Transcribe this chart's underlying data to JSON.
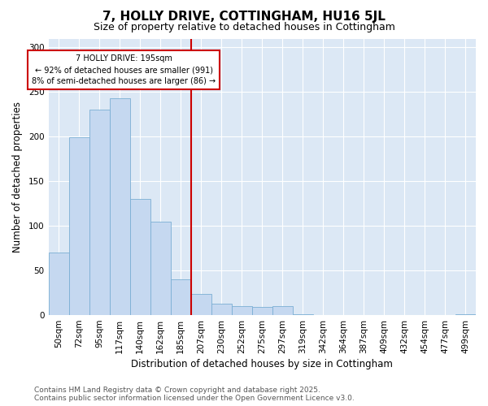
{
  "title": "7, HOLLY DRIVE, COTTINGHAM, HU16 5JL",
  "subtitle": "Size of property relative to detached houses in Cottingham",
  "xlabel": "Distribution of detached houses by size in Cottingham",
  "ylabel": "Number of detached properties",
  "bins": [
    "50sqm",
    "72sqm",
    "95sqm",
    "117sqm",
    "140sqm",
    "162sqm",
    "185sqm",
    "207sqm",
    "230sqm",
    "252sqm",
    "275sqm",
    "297sqm",
    "319sqm",
    "342sqm",
    "364sqm",
    "387sqm",
    "409sqm",
    "432sqm",
    "454sqm",
    "477sqm",
    "499sqm"
  ],
  "bar_heights": [
    70,
    199,
    230,
    243,
    130,
    105,
    40,
    24,
    13,
    10,
    9,
    10,
    1,
    0,
    0,
    0,
    0,
    0,
    0,
    0,
    1
  ],
  "bar_color": "#c5d8f0",
  "bar_edge_color": "#7bafd4",
  "vline_color": "#cc0000",
  "vline_position": 6.5,
  "annotation_text": "7 HOLLY DRIVE: 195sqm\n← 92% of detached houses are smaller (991)\n8% of semi-detached houses are larger (86) →",
  "annotation_box_color": "#ffffff",
  "annotation_box_edge_color": "#cc0000",
  "ylim": [
    0,
    310
  ],
  "yticks": [
    0,
    50,
    100,
    150,
    200,
    250,
    300
  ],
  "plot_bgcolor": "#dce8f5",
  "footer_text": "Contains HM Land Registry data © Crown copyright and database right 2025.\nContains public sector information licensed under the Open Government Licence v3.0.",
  "title_fontsize": 11,
  "subtitle_fontsize": 9,
  "xlabel_fontsize": 8.5,
  "ylabel_fontsize": 8.5,
  "tick_fontsize": 7.5,
  "annotation_fontsize": 7,
  "footer_fontsize": 6.5
}
